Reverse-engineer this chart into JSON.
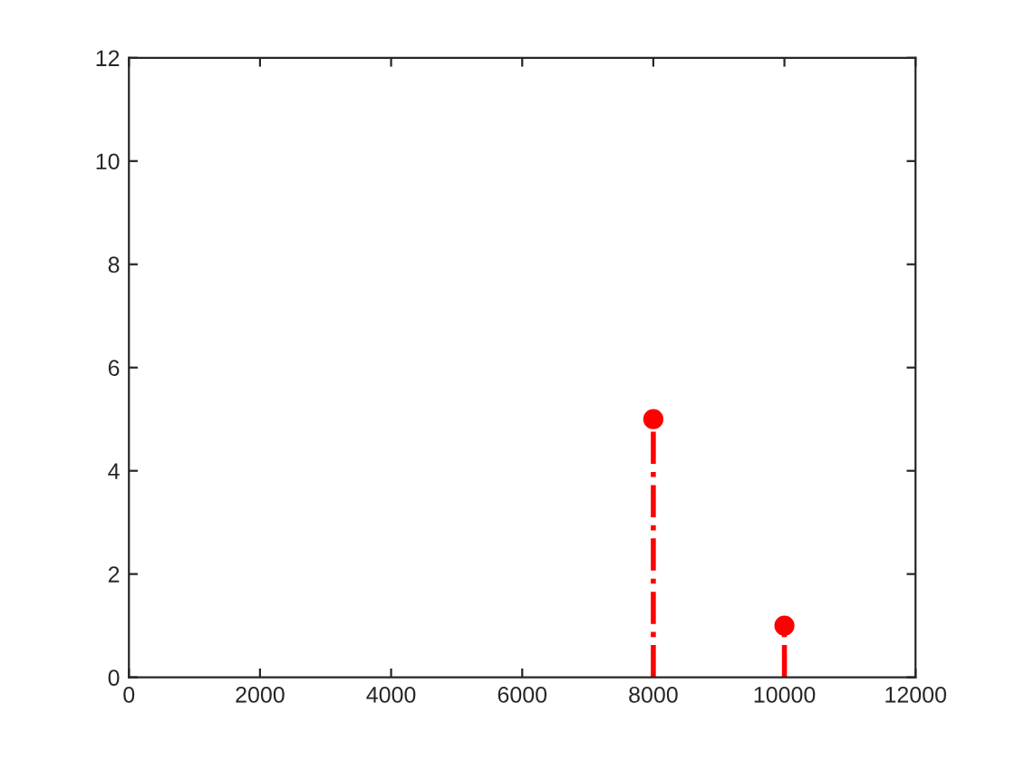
{
  "chart_data": {
    "type": "lollipop",
    "x": [
      8000,
      10000
    ],
    "values": [
      5,
      1
    ],
    "color": "#ff0000",
    "marker": "circle",
    "line_style": "dashdot",
    "xlim": [
      0,
      12000
    ],
    "xticks": [
      0,
      2000,
      4000,
      6000,
      8000,
      10000,
      12000
    ],
    "ylim": [
      0,
      12
    ],
    "yticks": [
      0,
      2,
      4,
      6,
      8,
      10,
      12
    ],
    "grid": false,
    "legend": false
  }
}
